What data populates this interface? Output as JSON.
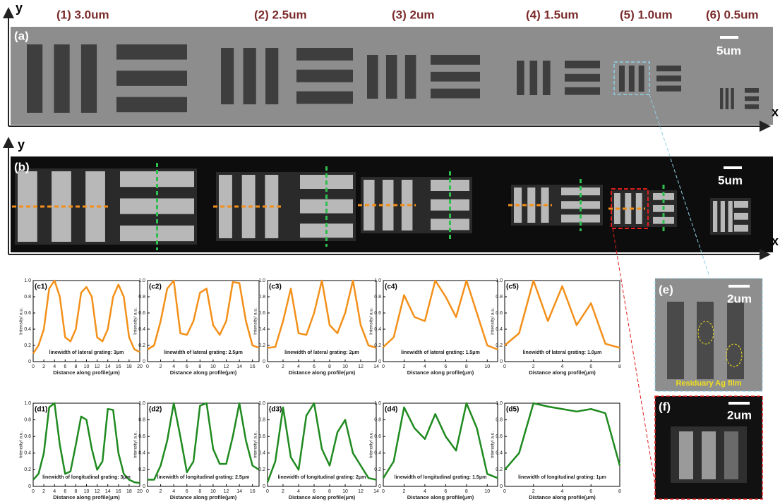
{
  "figure": {
    "groups": [
      "(1) 3.0um",
      "(2) 2.5um",
      "(3) 2um",
      "(4) 1.5um",
      "(5) 1.0um",
      "(6) 0.5um"
    ],
    "a": {
      "label": "(a)",
      "scale": "5um",
      "y_axis": "y",
      "x_axis": "x"
    },
    "b": {
      "label": "(b)",
      "scale": "5um",
      "y_axis": "y",
      "x_axis": "x"
    },
    "e": {
      "label": "(e)",
      "scale": "2um",
      "note": "Residuary Ag film"
    },
    "f": {
      "label": "(f)",
      "scale": "2um"
    }
  },
  "chart_data": [
    {
      "type": "line",
      "label": "(c1)",
      "color": "#f39019",
      "annotation": "linewidth of lateral grating: 3μm",
      "xlabel": "Distance along profile(μm)",
      "ylabel": "Intensity/ a.u.",
      "x": [
        0,
        1,
        2,
        3,
        4,
        5,
        6,
        7,
        8,
        9,
        10,
        11,
        12,
        13,
        14,
        15,
        16,
        17,
        18,
        19,
        20
      ],
      "values": [
        0.1,
        0.2,
        0.4,
        0.9,
        1.0,
        0.8,
        0.3,
        0.25,
        0.4,
        0.85,
        0.92,
        0.8,
        0.3,
        0.25,
        0.4,
        0.8,
        0.95,
        0.8,
        0.3,
        0.15,
        0.12
      ],
      "xlim": [
        0,
        20
      ],
      "xticks": [
        0,
        2,
        4,
        6,
        8,
        10,
        12,
        14,
        16,
        18,
        20
      ],
      "ylim": [
        0,
        1
      ],
      "yticks": [
        0,
        0.2,
        0.4,
        0.6,
        0.8,
        {
          "value": 1,
          "label": "1.0"
        }
      ]
    },
    {
      "type": "line",
      "label": "(c2)",
      "color": "#f39019",
      "annotation": "linewidth of lateral grating: 2.5μm",
      "xlabel": "Distance along profile(μm)",
      "ylabel": "Intensity/ a.u.",
      "x": [
        0,
        1,
        2,
        3,
        4,
        5,
        6,
        7,
        8,
        9,
        10,
        11,
        12,
        13,
        14,
        15,
        16,
        17
      ],
      "values": [
        0.15,
        0.2,
        0.5,
        0.9,
        1.0,
        0.35,
        0.33,
        0.5,
        0.85,
        0.9,
        0.45,
        0.33,
        0.5,
        0.98,
        0.97,
        0.5,
        0.2,
        0.17
      ],
      "xlim": [
        0,
        17
      ],
      "xticks": [
        0,
        2,
        4,
        6,
        8,
        10,
        12,
        14,
        16
      ],
      "ylim": [
        0,
        1
      ],
      "yticks": [
        0,
        0.2,
        0.4,
        0.6,
        0.8,
        {
          "value": 1,
          "label": "1.0"
        }
      ]
    },
    {
      "type": "line",
      "label": "(c3)",
      "color": "#f39019",
      "annotation": "linewidth of lateral grating: 2μm",
      "xlabel": "Distance along profile(μm)",
      "ylabel": "Intensity/ a.u.",
      "x": [
        0,
        1,
        2,
        3,
        4,
        5,
        6,
        7,
        8,
        9,
        10,
        11,
        12,
        13,
        14
      ],
      "values": [
        0.17,
        0.18,
        0.5,
        0.9,
        0.35,
        0.33,
        0.6,
        1.0,
        0.45,
        0.35,
        0.6,
        1.0,
        0.45,
        0.2,
        0.17
      ],
      "xlim": [
        0,
        14
      ],
      "xticks": [
        0,
        2,
        4,
        6,
        8,
        10,
        12,
        14
      ],
      "ylim": [
        0,
        1
      ],
      "yticks": [
        0,
        0.2,
        0.4,
        0.6,
        0.8,
        {
          "value": 1,
          "label": "1.0"
        }
      ]
    },
    {
      "type": "line",
      "label": "(c4)",
      "color": "#f39019",
      "annotation": "linewidth of lateral grating: 1.5μm",
      "xlabel": "Distance along profile(μm)",
      "ylabel": "Intensity/ a.u.",
      "x": [
        0,
        1,
        2,
        3,
        4,
        5,
        6,
        7,
        8,
        9,
        10,
        11
      ],
      "values": [
        0.18,
        0.3,
        0.82,
        0.55,
        0.5,
        1.0,
        0.8,
        0.55,
        1.0,
        0.6,
        0.2,
        0.15
      ],
      "xlim": [
        0,
        11
      ],
      "xticks": [
        0,
        2,
        4,
        6,
        8,
        10
      ],
      "ylim": [
        0,
        1
      ],
      "yticks": [
        0,
        0.2,
        0.4,
        0.6,
        0.8,
        {
          "value": 1,
          "label": "1.0"
        }
      ]
    },
    {
      "type": "line",
      "label": "(c5)",
      "color": "#f39019",
      "annotation": "linewidth of lateral grating: 1.0μm",
      "xlabel": "Distance along profile(μm)",
      "ylabel": "Intensity/ a.u.",
      "x": [
        0,
        1,
        2,
        3,
        4,
        5,
        6,
        7,
        8
      ],
      "values": [
        0.2,
        0.35,
        1.0,
        0.5,
        0.93,
        0.45,
        0.72,
        0.22,
        0.17
      ],
      "xlim": [
        0,
        8
      ],
      "xticks": [
        0,
        2,
        4,
        6,
        8
      ],
      "ylim": [
        0,
        1
      ],
      "yticks": [
        0,
        0.2,
        0.4,
        0.6,
        0.8,
        {
          "value": 1,
          "label": "1.0"
        }
      ]
    },
    {
      "type": "line",
      "label": "(d1)",
      "color": "#1f8a1f",
      "annotation": "linewidth of longitudinal grating: 3μm",
      "xlabel": "Distance along profile(μm)",
      "ylabel": "Intensity/ a.u.",
      "x": [
        0,
        1,
        2,
        3,
        4,
        5,
        6,
        7,
        8,
        9,
        10,
        11,
        12,
        13,
        14,
        15,
        16,
        17,
        18,
        19,
        20
      ],
      "values": [
        0.08,
        0.15,
        0.4,
        0.95,
        1.0,
        0.5,
        0.15,
        0.18,
        0.5,
        0.84,
        0.8,
        0.45,
        0.2,
        0.3,
        0.93,
        0.92,
        0.4,
        0.15,
        0.08,
        0.05,
        0.04
      ],
      "xlim": [
        0,
        20
      ],
      "xticks": [
        0,
        2,
        4,
        6,
        8,
        10,
        12,
        14,
        16,
        18,
        20
      ],
      "ylim": [
        0,
        1
      ],
      "yticks": [
        0,
        0.2,
        0.4,
        0.6,
        0.8,
        {
          "value": 1,
          "label": "1.0"
        }
      ]
    },
    {
      "type": "line",
      "label": "(d2)",
      "color": "#1f8a1f",
      "annotation": "linewidth of longitudinal grating: 2.5μm",
      "xlabel": "Distance along profile(μm)",
      "ylabel": "Intensity/ a.u.",
      "x": [
        0,
        1,
        2,
        3,
        4,
        5,
        6,
        7,
        8,
        9,
        10,
        11,
        12,
        13,
        14,
        15,
        16,
        17
      ],
      "values": [
        0.08,
        0.08,
        0.25,
        0.55,
        1.0,
        0.6,
        0.17,
        0.3,
        0.97,
        1.0,
        0.45,
        0.27,
        0.27,
        0.6,
        1.0,
        0.55,
        0.25,
        0.2
      ],
      "xlim": [
        0,
        17
      ],
      "xticks": [
        0,
        2,
        4,
        6,
        8,
        10,
        12,
        14,
        16
      ],
      "ylim": [
        0,
        1
      ],
      "yticks": [
        0,
        0.2,
        0.4,
        0.6,
        0.8,
        {
          "value": 1,
          "label": "1.0"
        }
      ]
    },
    {
      "type": "line",
      "label": "(d3)",
      "color": "#1f8a1f",
      "annotation": "linewidth of longitudinal grating: 2μm",
      "xlabel": "Distance along profile(μm)",
      "ylabel": "Intensity/ a.u.",
      "x": [
        0,
        1,
        2,
        3,
        4,
        5,
        6,
        7,
        8,
        9,
        10,
        11,
        12,
        13,
        14
      ],
      "values": [
        0.05,
        0.3,
        0.95,
        0.35,
        0.2,
        0.85,
        1.0,
        0.45,
        0.25,
        0.65,
        0.8,
        0.4,
        0.25,
        0.1,
        0.08
      ],
      "xlim": [
        0,
        14
      ],
      "xticks": [
        0,
        2,
        4,
        6,
        8,
        10,
        12,
        14
      ],
      "ylim": [
        0,
        1
      ],
      "yticks": [
        0,
        0.2,
        0.4,
        0.6,
        0.8,
        {
          "value": 1,
          "label": "1.0"
        }
      ]
    },
    {
      "type": "line",
      "label": "(d4)",
      "color": "#1f8a1f",
      "annotation": "linewidth of longitudinal grating: 1.5μm",
      "xlabel": "Distance along profile(μm)",
      "ylabel": "Intensity/ a.u.",
      "x": [
        0,
        1,
        2,
        3,
        4,
        5,
        6,
        7,
        8,
        9,
        10,
        11
      ],
      "values": [
        0.1,
        0.3,
        0.95,
        0.7,
        0.57,
        0.87,
        0.6,
        0.43,
        1.0,
        0.7,
        0.15,
        0.1
      ],
      "xlim": [
        0,
        11
      ],
      "xticks": [
        0,
        2,
        4,
        6,
        8,
        10
      ],
      "ylim": [
        0,
        1
      ],
      "yticks": [
        0,
        0.2,
        0.4,
        0.6,
        0.8,
        {
          "value": 1,
          "label": "1.0"
        }
      ]
    },
    {
      "type": "line",
      "label": "(d5)",
      "color": "#1f8a1f",
      "annotation": "linewidth of longitudinal grating: 1μm",
      "xlabel": "Distance along profile(μm)",
      "ylabel": "Intensity/ a.u.",
      "x": [
        0,
        1,
        2,
        3,
        4,
        5,
        6,
        7,
        8
      ],
      "values": [
        0.2,
        0.4,
        1.0,
        0.96,
        0.93,
        0.9,
        0.93,
        0.88,
        0.25
      ],
      "xlim": [
        0,
        8
      ],
      "xticks": [
        0,
        2,
        4,
        6,
        8
      ],
      "ylim": [
        0,
        1
      ],
      "yticks": [
        0,
        0.2,
        0.4,
        0.6,
        0.8,
        {
          "value": 1,
          "label": "1.0"
        }
      ]
    }
  ]
}
